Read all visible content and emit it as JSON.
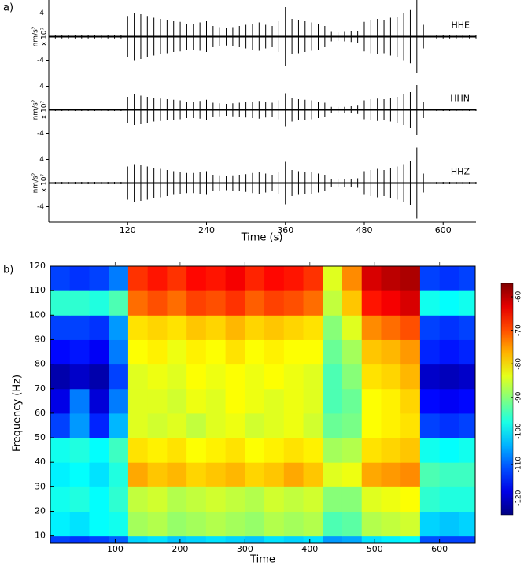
{
  "chart_data": [
    {
      "type": "waveform",
      "panel_label": "a)",
      "xlabel": "Time (s)",
      "ylabel": "nm/s²",
      "yscale_label": "x 10⁷",
      "xlim": [
        0,
        650
      ],
      "xticks": [
        120,
        240,
        360,
        480,
        600
      ],
      "ylim": [
        -6.2,
        6.2
      ],
      "yticks": [
        -4,
        4
      ],
      "x": [
        0,
        10,
        20,
        30,
        40,
        50,
        60,
        70,
        80,
        90,
        100,
        110,
        120,
        130,
        140,
        150,
        160,
        170,
        180,
        190,
        200,
        210,
        220,
        230,
        240,
        250,
        260,
        270,
        280,
        290,
        300,
        310,
        320,
        330,
        340,
        350,
        360,
        370,
        380,
        390,
        400,
        410,
        420,
        430,
        440,
        450,
        460,
        470,
        480,
        490,
        500,
        510,
        520,
        530,
        540,
        550,
        560,
        570,
        580,
        590,
        600,
        610,
        620,
        630,
        640,
        650
      ],
      "series": [
        {
          "name": "HHE",
          "color": "#000000",
          "values": [
            0.3,
            0.3,
            0.3,
            0.3,
            0.3,
            0.3,
            0.3,
            0.3,
            0.3,
            0.3,
            0.3,
            0.3,
            3.5,
            4,
            3.8,
            3.5,
            3.2,
            3,
            2.8,
            2.6,
            2.5,
            2.2,
            2.2,
            2.4,
            2.6,
            1.8,
            1.6,
            1.5,
            1.6,
            1.8,
            2,
            2.2,
            2.4,
            2,
            1.8,
            2.6,
            5,
            3,
            2.8,
            2.6,
            2.4,
            2.2,
            1.8,
            0.8,
            0.7,
            0.8,
            0.9,
            1,
            2.5,
            2.8,
            3,
            2.8,
            3.2,
            3.4,
            4,
            4.5,
            6.2,
            2,
            0.3,
            0.3,
            0.3,
            0.3,
            0.3,
            0.3,
            0.3,
            0.3
          ]
        },
        {
          "name": "HHN",
          "color": "#000000",
          "values": [
            0.2,
            0.2,
            0.2,
            0.2,
            0.2,
            0.2,
            0.2,
            0.2,
            0.2,
            0.2,
            0.2,
            0.2,
            2.2,
            2.6,
            2.4,
            2.2,
            2,
            1.9,
            1.8,
            1.7,
            1.6,
            1.4,
            1.4,
            1.5,
            1.7,
            1.2,
            1.1,
            1,
            1.1,
            1.2,
            1.3,
            1.4,
            1.5,
            1.3,
            1.2,
            1.6,
            2.8,
            2,
            1.8,
            1.7,
            1.6,
            1.4,
            1.2,
            0.5,
            0.5,
            0.5,
            0.6,
            0.7,
            1.6,
            1.8,
            1.9,
            1.8,
            2,
            2.2,
            2.6,
            3,
            4.2,
            1.4,
            0.2,
            0.2,
            0.2,
            0.2,
            0.2,
            0.2,
            0.2,
            0.2
          ]
        },
        {
          "name": "HHZ",
          "color": "#000000",
          "values": [
            0.2,
            0.2,
            0.2,
            0.2,
            0.2,
            0.2,
            0.2,
            0.2,
            0.2,
            0.2,
            0.2,
            0.2,
            2.8,
            3.2,
            3,
            2.8,
            2.5,
            2.4,
            2.2,
            2,
            1.9,
            1.7,
            1.7,
            1.8,
            2,
            1.4,
            1.3,
            1.2,
            1.3,
            1.4,
            1.5,
            1.7,
            1.8,
            1.6,
            1.4,
            1.8,
            3.6,
            2.2,
            2,
            1.9,
            1.8,
            1.6,
            1.4,
            0.6,
            0.6,
            0.6,
            0.7,
            0.8,
            2,
            2.2,
            2.4,
            2.2,
            2.5,
            2.8,
            3.2,
            3.8,
            6,
            1.6,
            0.2,
            0.2,
            0.2,
            0.2,
            0.2,
            0.2,
            0.2,
            0.2
          ]
        }
      ]
    },
    {
      "type": "heatmap",
      "panel_label": "b)",
      "xlabel": "Time",
      "ylabel": "Frequency (Hz)",
      "xlim": [
        0,
        655
      ],
      "xticks": [
        100,
        200,
        300,
        400,
        500,
        600
      ],
      "ylim": [
        7,
        120
      ],
      "yticks": [
        10,
        20,
        30,
        40,
        50,
        60,
        70,
        80,
        90,
        100,
        110,
        120
      ],
      "clim": [
        -125,
        -56
      ],
      "cticks": [
        -60,
        -70,
        -80,
        -90,
        -100,
        -110,
        -120
      ],
      "colormap": "jet",
      "xbins": [
        0,
        30,
        60,
        90,
        120,
        150,
        180,
        210,
        240,
        270,
        300,
        330,
        360,
        390,
        420,
        450,
        480,
        510,
        540,
        570,
        600,
        630,
        655
      ],
      "ybins": [
        7,
        10,
        20,
        30,
        40,
        50,
        60,
        70,
        80,
        90,
        100,
        110,
        120
      ],
      "values": [
        [
          -112,
          -113,
          -112,
          -110,
          -102,
          -101,
          -103,
          -102,
          -101,
          -102,
          -103,
          -101,
          -102,
          -101,
          -106,
          -105,
          -101,
          -100,
          -99,
          -111,
          -112,
          -112
        ],
        [
          -100,
          -101,
          -99,
          -98,
          -88,
          -87,
          -89,
          -88,
          -87,
          -88,
          -89,
          -87,
          -88,
          -87,
          -94,
          -93,
          -87,
          -86,
          -85,
          -102,
          -103,
          -102
        ],
        [
          -98,
          -97,
          -99,
          -96,
          -86,
          -85,
          -87,
          -86,
          -85,
          -86,
          -87,
          -85,
          -86,
          -85,
          -90,
          -90,
          -84,
          -83,
          -82,
          -96,
          -97,
          -97
        ],
        [
          -100,
          -99,
          -101,
          -97,
          -76,
          -78,
          -77,
          -79,
          -78,
          -77,
          -79,
          -78,
          -76,
          -78,
          -84,
          -83,
          -76,
          -75,
          -74,
          -94,
          -95,
          -95
        ],
        [
          -98,
          -97,
          -99,
          -95,
          -80,
          -81,
          -80,
          -82,
          -81,
          -80,
          -82,
          -81,
          -80,
          -81,
          -88,
          -87,
          -80,
          -79,
          -78,
          -98,
          -99,
          -98
        ],
        [
          -112,
          -106,
          -114,
          -104,
          -84,
          -85,
          -84,
          -86,
          -84,
          -83,
          -85,
          -84,
          -83,
          -85,
          -92,
          -91,
          -82,
          -81,
          -80,
          -112,
          -113,
          -112
        ],
        [
          -118,
          -108,
          -119,
          -108,
          -84,
          -84,
          -85,
          -83,
          -84,
          -82,
          -83,
          -84,
          -83,
          -84,
          -94,
          -92,
          -82,
          -81,
          -79,
          -116,
          -117,
          -116
        ],
        [
          -122,
          -120,
          -122,
          -112,
          -84,
          -83,
          -84,
          -82,
          -83,
          -82,
          -83,
          -82,
          -83,
          -84,
          -94,
          -90,
          -80,
          -79,
          -77,
          -120,
          -121,
          -120
        ],
        [
          -116,
          -115,
          -117,
          -108,
          -82,
          -81,
          -83,
          -81,
          -82,
          -80,
          -82,
          -81,
          -82,
          -82,
          -92,
          -88,
          -78,
          -77,
          -75,
          -114,
          -115,
          -114
        ],
        [
          -112,
          -112,
          -113,
          -106,
          -80,
          -79,
          -80,
          -78,
          -79,
          -77,
          -79,
          -78,
          -79,
          -80,
          -90,
          -84,
          -74,
          -72,
          -70,
          -112,
          -113,
          -112
        ],
        [
          -96,
          -96,
          -97,
          -94,
          -72,
          -70,
          -72,
          -69,
          -70,
          -68,
          -71,
          -69,
          -70,
          -72,
          -86,
          -78,
          -66,
          -64,
          -62,
          -98,
          -99,
          -98
        ],
        [
          -112,
          -113,
          -112,
          -108,
          -68,
          -66,
          -68,
          -65,
          -66,
          -64,
          -67,
          -65,
          -66,
          -68,
          -84,
          -74,
          -62,
          -60,
          -59,
          -112,
          -113,
          -112
        ]
      ]
    }
  ]
}
